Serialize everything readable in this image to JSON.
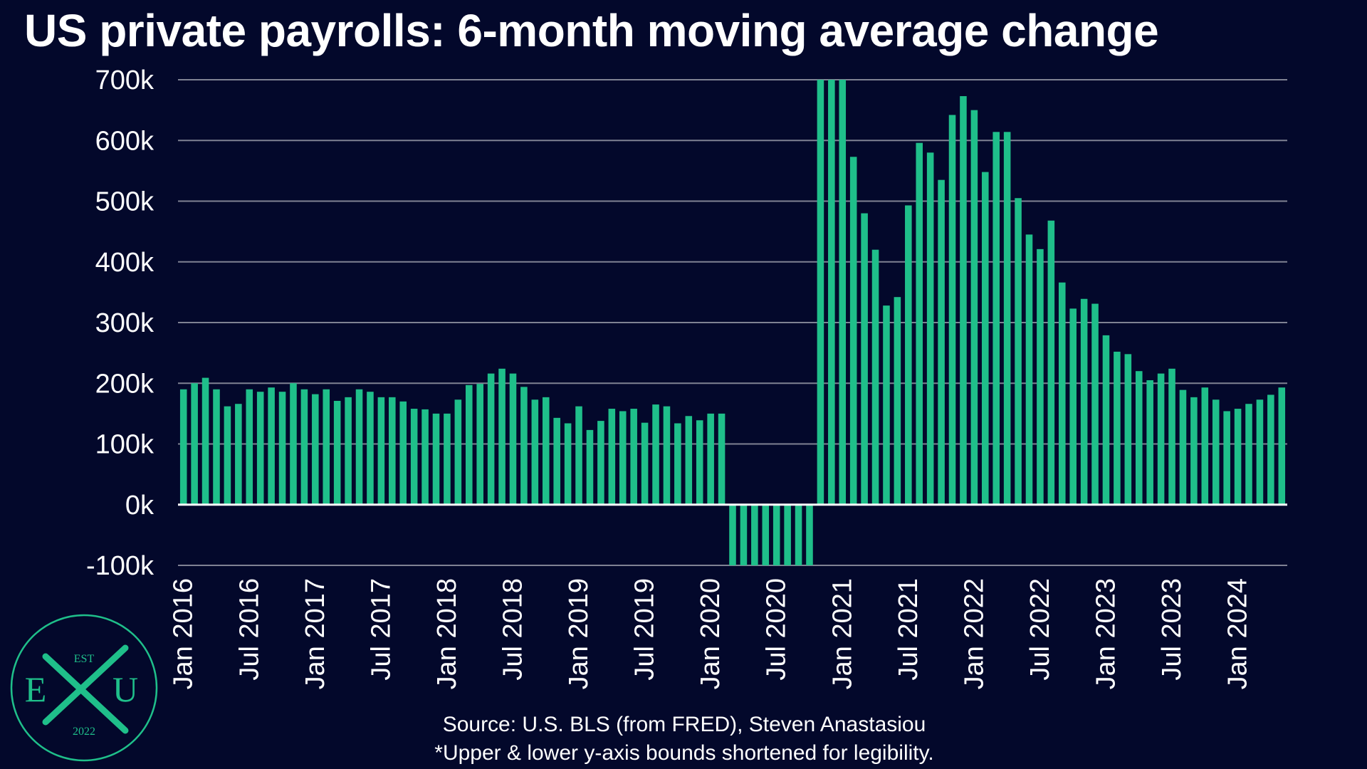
{
  "chart_data": {
    "type": "bar",
    "title": "US private payrolls: 6-month moving average change",
    "xlabel": "",
    "ylabel": "",
    "ylim": [
      -100000,
      700000
    ],
    "yticks": [
      {
        "value": 700000,
        "label": "700k"
      },
      {
        "value": 600000,
        "label": "600k"
      },
      {
        "value": 500000,
        "label": "500k"
      },
      {
        "value": 400000,
        "label": "400k"
      },
      {
        "value": 300000,
        "label": "300k"
      },
      {
        "value": 200000,
        "label": "200k"
      },
      {
        "value": 100000,
        "label": "100k"
      },
      {
        "value": 0,
        "label": "0k"
      },
      {
        "value": -100000,
        "label": "-100k"
      }
    ],
    "xtick_labels": [
      {
        "index": 0,
        "label": "Jan 2016"
      },
      {
        "index": 6,
        "label": "Jul 2016"
      },
      {
        "index": 12,
        "label": "Jan 2017"
      },
      {
        "index": 18,
        "label": "Jul 2017"
      },
      {
        "index": 24,
        "label": "Jan 2018"
      },
      {
        "index": 30,
        "label": "Jul 2018"
      },
      {
        "index": 36,
        "label": "Jan 2019"
      },
      {
        "index": 42,
        "label": "Jul 2019"
      },
      {
        "index": 48,
        "label": "Jan 2020"
      },
      {
        "index": 54,
        "label": "Jul 2020"
      },
      {
        "index": 60,
        "label": "Jan 2021"
      },
      {
        "index": 66,
        "label": "Jul 2021"
      },
      {
        "index": 72,
        "label": "Jan 2022"
      },
      {
        "index": 78,
        "label": "Jul 2022"
      },
      {
        "index": 84,
        "label": "Jan 2023"
      },
      {
        "index": 90,
        "label": "Jul 2023"
      },
      {
        "index": 96,
        "label": "Jan 2024"
      }
    ],
    "start_month": "Jan 2016",
    "values": [
      190000,
      200000,
      209000,
      190000,
      162000,
      166000,
      190000,
      186000,
      193000,
      186000,
      200000,
      190000,
      182000,
      190000,
      171000,
      177000,
      190000,
      186000,
      177000,
      177000,
      170000,
      158000,
      157000,
      150000,
      150000,
      173000,
      197000,
      199000,
      216000,
      224000,
      216000,
      194000,
      173000,
      177000,
      143000,
      134000,
      162000,
      123000,
      138000,
      158000,
      154000,
      158000,
      135000,
      165000,
      162000,
      134000,
      146000,
      139000,
      150000,
      150000,
      -100000,
      -100000,
      -100000,
      -100000,
      -100000,
      -100000,
      -100000,
      -100000,
      700000,
      700000,
      700000,
      573000,
      480000,
      420000,
      328000,
      342000,
      493000,
      596000,
      580000,
      535000,
      642000,
      673000,
      650000,
      548000,
      614000,
      614000,
      505000,
      445000,
      421000,
      468000,
      366000,
      323000,
      339000,
      331000,
      279000,
      252000,
      248000,
      220000,
      205000,
      216000,
      224000,
      189000,
      177000,
      193000,
      173000,
      154000,
      158000,
      166000,
      173000,
      181000,
      193000
    ],
    "bar_color": "#1fbf8a",
    "gridlines": true,
    "legend": "none"
  },
  "footer": {
    "source": "Source: U.S. BLS (from FRED), Steven Anastasiou",
    "note": "*Upper & lower y-axis bounds shortened for legibility."
  },
  "logo": {
    "est": "EST",
    "left_letter": "E",
    "right_letter": "U",
    "year": "2022",
    "color": "#1fbf8a"
  },
  "colors": {
    "background": "#03082b",
    "grid": "#7f8293",
    "text": "#ffffff"
  }
}
